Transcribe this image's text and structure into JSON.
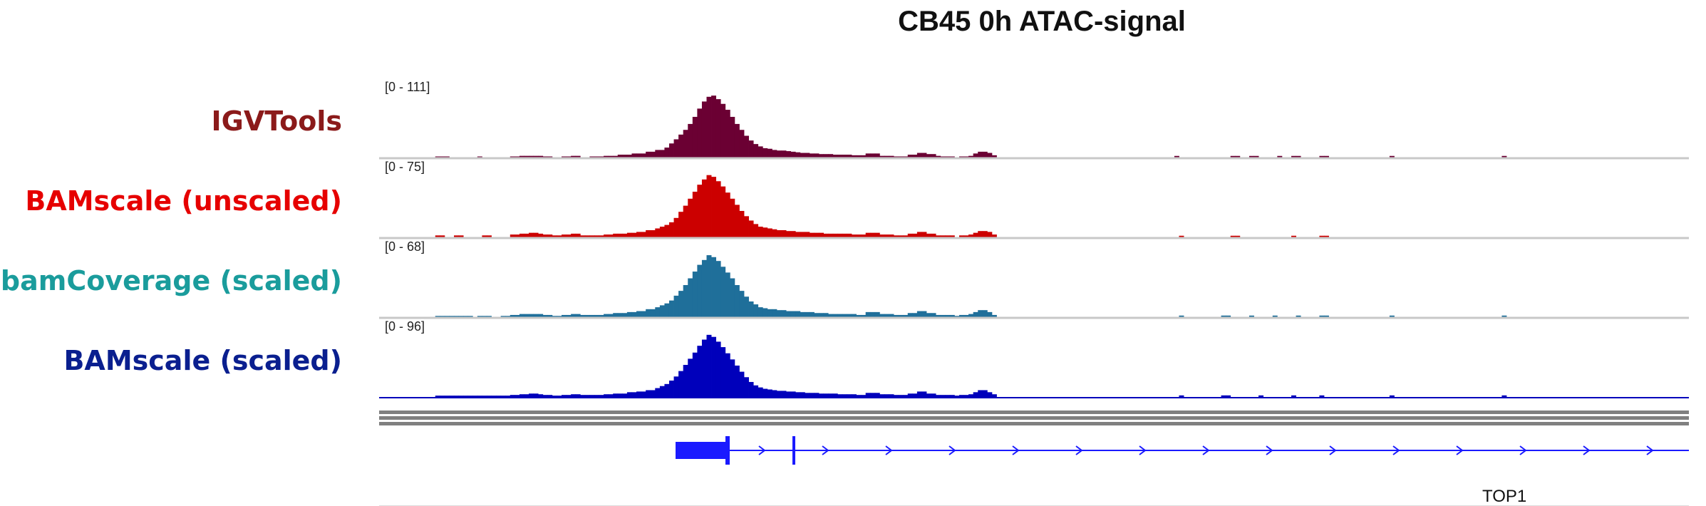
{
  "chart_data": {
    "type": "area",
    "title": "CB45 0h ATAC-signal",
    "tracks": [
      {
        "name": "IGVTools",
        "range_label": "[0 - 111]",
        "ymax": 111,
        "color": "#6b0033",
        "label_color": "#8b1a1a",
        "values": [
          0,
          0,
          0,
          0,
          0,
          0,
          0,
          0,
          0,
          0,
          0,
          0,
          3,
          3,
          3,
          0,
          0,
          0,
          0,
          0,
          0,
          3,
          0,
          0,
          0,
          0,
          0,
          0,
          3,
          3,
          4,
          4,
          4,
          4,
          4,
          3,
          3,
          0,
          0,
          3,
          3,
          4,
          4,
          0,
          0,
          3,
          3,
          3,
          4,
          4,
          4,
          6,
          6,
          6,
          8,
          8,
          8,
          11,
          11,
          14,
          14,
          18,
          25,
          32,
          40,
          48,
          58,
          70,
          84,
          96,
          104,
          106,
          100,
          92,
          82,
          70,
          58,
          48,
          38,
          30,
          24,
          20,
          17,
          16,
          14,
          13,
          13,
          12,
          11,
          10,
          9,
          9,
          8,
          8,
          7,
          7,
          7,
          6,
          6,
          6,
          6,
          5,
          5,
          5,
          8,
          8,
          8,
          4,
          4,
          4,
          3,
          3,
          3,
          6,
          6,
          9,
          9,
          7,
          7,
          4,
          3,
          3,
          3,
          0,
          3,
          3,
          4,
          8,
          11,
          11,
          9,
          5,
          0,
          0,
          0,
          0,
          0,
          0,
          0,
          0,
          0,
          0,
          0,
          0,
          0,
          0,
          0,
          0,
          0,
          0,
          0,
          0,
          0,
          0,
          0,
          0,
          0,
          0,
          0,
          0,
          0,
          0,
          0,
          0,
          0,
          0,
          0,
          0,
          0,
          0,
          0,
          0,
          0,
          0,
          0,
          0,
          0,
          0,
          0,
          0,
          0,
          0,
          0,
          0,
          0,
          0,
          0,
          0,
          0,
          0,
          0,
          0,
          0,
          0,
          0,
          0,
          0,
          0,
          0,
          0,
          0,
          0,
          0,
          0,
          0,
          0,
          0,
          0,
          0,
          0,
          0,
          0,
          0,
          0,
          0,
          0,
          0,
          0,
          0,
          0,
          0,
          0,
          0,
          0,
          0,
          0,
          0,
          0,
          0,
          0,
          0,
          0,
          0,
          0,
          0,
          0,
          0,
          0,
          0,
          0,
          0,
          0,
          0,
          0,
          0,
          0,
          0,
          0,
          0,
          0,
          0,
          0,
          0,
          0,
          0,
          0,
          0,
          0,
          0,
          0,
          0,
          0,
          0,
          0,
          0,
          0,
          0,
          0,
          0,
          0,
          0,
          0,
          0,
          0,
          0,
          0,
          0,
          0,
          0,
          0
        ]
      },
      {
        "name": "BAMscale (unscaled)",
        "range_label": "[0 - 75]",
        "ymax": 75,
        "color": "#cc0000",
        "label_color": "#e60000",
        "values": [
          0,
          0,
          0,
          0,
          0,
          0,
          0,
          0,
          0,
          0,
          0,
          0,
          3,
          3,
          0,
          0,
          3,
          3,
          0,
          0,
          0,
          0,
          3,
          3,
          0,
          0,
          0,
          0,
          4,
          4,
          5,
          5,
          6,
          6,
          5,
          4,
          4,
          3,
          3,
          4,
          4,
          5,
          5,
          3,
          3,
          3,
          3,
          3,
          4,
          4,
          5,
          5,
          5,
          6,
          6,
          7,
          7,
          9,
          9,
          11,
          13,
          15,
          18,
          23,
          30,
          37,
          45,
          53,
          61,
          67,
          72,
          70,
          65,
          59,
          52,
          45,
          38,
          31,
          25,
          20,
          16,
          13,
          12,
          11,
          10,
          9,
          9,
          8,
          8,
          7,
          7,
          7,
          6,
          6,
          6,
          5,
          5,
          5,
          5,
          5,
          5,
          4,
          4,
          4,
          6,
          6,
          6,
          4,
          4,
          4,
          3,
          3,
          3,
          5,
          5,
          7,
          7,
          5,
          5,
          3,
          3,
          3,
          3,
          0,
          3,
          3,
          4,
          6,
          8,
          8,
          7,
          4,
          0,
          0,
          0,
          0,
          0,
          0,
          0,
          0,
          0,
          0,
          0,
          0,
          0,
          0,
          0,
          0,
          0,
          0,
          0,
          0,
          0,
          0,
          0,
          0,
          0,
          0,
          0,
          0,
          0,
          0,
          0,
          0,
          0,
          0,
          0,
          0,
          0,
          0,
          0,
          0,
          0,
          0,
          0,
          0,
          0,
          0,
          0,
          0,
          0,
          0,
          0,
          0,
          0,
          0,
          0,
          0,
          0,
          0,
          0,
          0,
          0,
          0,
          0,
          0,
          0,
          0,
          0,
          0,
          0,
          0,
          0,
          0,
          0,
          0,
          0,
          0,
          0,
          0,
          0,
          0,
          0,
          0,
          0,
          0,
          0,
          0,
          0,
          0,
          0,
          0,
          0,
          0,
          0,
          0,
          0,
          0,
          0,
          0,
          0,
          0,
          0,
          0,
          0,
          0,
          0,
          0,
          0,
          0,
          0,
          0,
          0,
          0,
          0,
          0,
          0,
          0,
          0,
          0,
          0,
          0,
          0,
          0,
          0,
          0,
          0,
          0,
          0,
          0,
          0,
          0,
          0,
          0,
          0,
          0,
          0,
          0,
          0,
          0,
          0,
          0,
          0,
          0,
          0,
          0,
          0,
          0,
          0,
          0
        ]
      },
      {
        "name": "bamCoverage (scaled)",
        "range_label": "[0 - 68]",
        "ymax": 68,
        "color": "#1f6f9a",
        "label_color": "#1a9c9c",
        "values": [
          0,
          0,
          0,
          0,
          0,
          0,
          0,
          0,
          0,
          0,
          0,
          0,
          2,
          2,
          2,
          2,
          2,
          2,
          2,
          2,
          0,
          2,
          2,
          2,
          0,
          0,
          2,
          2,
          3,
          3,
          4,
          4,
          4,
          4,
          4,
          3,
          3,
          2,
          2,
          3,
          3,
          4,
          4,
          3,
          3,
          3,
          3,
          3,
          4,
          4,
          5,
          5,
          5,
          6,
          6,
          7,
          7,
          9,
          9,
          11,
          13,
          15,
          18,
          23,
          28,
          34,
          41,
          48,
          55,
          60,
          65,
          63,
          59,
          53,
          47,
          41,
          34,
          28,
          22,
          17,
          14,
          11,
          10,
          9,
          9,
          8,
          8,
          7,
          7,
          7,
          6,
          6,
          6,
          5,
          5,
          5,
          4,
          4,
          4,
          4,
          4,
          4,
          3,
          3,
          6,
          6,
          6,
          4,
          4,
          4,
          3,
          3,
          3,
          5,
          5,
          7,
          7,
          5,
          5,
          3,
          3,
          3,
          3,
          2,
          3,
          3,
          4,
          6,
          8,
          8,
          6,
          3,
          0,
          0,
          0,
          0,
          0,
          0,
          0,
          0,
          0,
          0,
          0,
          0,
          0,
          0,
          0,
          0,
          0,
          0,
          0,
          0,
          0,
          0,
          0,
          0,
          0,
          0,
          0,
          0,
          0,
          0,
          0,
          0,
          0,
          0,
          0,
          0,
          0,
          0,
          0,
          0,
          0,
          0,
          0,
          0,
          0,
          0,
          0,
          0,
          0,
          0,
          0,
          0,
          0,
          0,
          0,
          0,
          0,
          0,
          0,
          0,
          0,
          0,
          0,
          0,
          0,
          0,
          0,
          0,
          0,
          0,
          0,
          0,
          0,
          0,
          0,
          0,
          0,
          0,
          0,
          0,
          0,
          0,
          0,
          0,
          0,
          0,
          0,
          0,
          0,
          0,
          0,
          0,
          0,
          0,
          0,
          0,
          0,
          0,
          0,
          0,
          0,
          0,
          0,
          0,
          0,
          0,
          0,
          0,
          0,
          0,
          0,
          0,
          0,
          0,
          0,
          0,
          0,
          0,
          0,
          0,
          0,
          0,
          0,
          0,
          0,
          0,
          0,
          0,
          0,
          0,
          0,
          0,
          0,
          0,
          0,
          0,
          0,
          0,
          0,
          0,
          0,
          0,
          0,
          0,
          0,
          0,
          0,
          0
        ]
      },
      {
        "name": "BAMscale (scaled)",
        "range_label": "[0 - 96]",
        "ymax": 96,
        "color": "#0000bb",
        "label_color": "#0a1f8f",
        "values": [
          0,
          0,
          0,
          0,
          0,
          0,
          0,
          0,
          0,
          0,
          0,
          0,
          3,
          3,
          3,
          3,
          3,
          3,
          3,
          3,
          3,
          3,
          3,
          3,
          3,
          3,
          3,
          3,
          4,
          4,
          5,
          5,
          6,
          6,
          5,
          4,
          4,
          3,
          3,
          4,
          4,
          5,
          5,
          4,
          4,
          4,
          4,
          4,
          5,
          5,
          6,
          6,
          6,
          8,
          8,
          9,
          9,
          11,
          11,
          14,
          17,
          20,
          25,
          31,
          39,
          48,
          57,
          66,
          76,
          85,
          92,
          89,
          82,
          74,
          65,
          56,
          47,
          38,
          30,
          23,
          18,
          15,
          13,
          12,
          11,
          10,
          10,
          9,
          9,
          8,
          8,
          7,
          7,
          7,
          6,
          6,
          6,
          6,
          5,
          5,
          5,
          5,
          4,
          4,
          7,
          7,
          7,
          5,
          5,
          5,
          4,
          4,
          4,
          6,
          6,
          9,
          9,
          6,
          6,
          4,
          4,
          4,
          4,
          3,
          4,
          4,
          5,
          8,
          11,
          11,
          8,
          5,
          0,
          0,
          0,
          0,
          0,
          0,
          0,
          0,
          0,
          0,
          0,
          0,
          0,
          0,
          0,
          0,
          0,
          0,
          0,
          0,
          0,
          0,
          0,
          0,
          0,
          0,
          0,
          0,
          0,
          0,
          0,
          0,
          0,
          0,
          0,
          0,
          0,
          0,
          0,
          0,
          0,
          0,
          0,
          0,
          0,
          0,
          0,
          0,
          0,
          0,
          0,
          0,
          0,
          0,
          0,
          0,
          0,
          0,
          0,
          0,
          0,
          0,
          0,
          0,
          0,
          0,
          0,
          0,
          0,
          0,
          0,
          0,
          0,
          0,
          0,
          0,
          0,
          0,
          0,
          0,
          0,
          0,
          0,
          0,
          0,
          0,
          0,
          0,
          0,
          0,
          0,
          0,
          0,
          0,
          0,
          0,
          0,
          0,
          0,
          0,
          0,
          0,
          0,
          0,
          0,
          0,
          0,
          0,
          0,
          0,
          0,
          0,
          0,
          0,
          0,
          0,
          0,
          0,
          0,
          0,
          0,
          0,
          0,
          0,
          0,
          0,
          0,
          0,
          0,
          0,
          0,
          0,
          0,
          0,
          0,
          0,
          0,
          0,
          0,
          0,
          0,
          0,
          0,
          0,
          0,
          0,
          0,
          0,
          0,
          0
        ]
      }
    ],
    "sparse_peaks": [
      {
        "track": 0,
        "bins": [
          170,
          182,
          183,
          186,
          187,
          192,
          195,
          196,
          201,
          202,
          216,
          240
        ]
      },
      {
        "track": 1,
        "bins": [
          171,
          182,
          183,
          195,
          201,
          202
        ]
      },
      {
        "track": 2,
        "bins": [
          171,
          180,
          181,
          186,
          191,
          196,
          201,
          202,
          216,
          240
        ]
      },
      {
        "track": 3,
        "bins": [
          171,
          180,
          181,
          188,
          195,
          201,
          216,
          240
        ]
      }
    ],
    "gene": {
      "name": "TOP1",
      "color": "#1a1aff",
      "strand": "+"
    }
  }
}
